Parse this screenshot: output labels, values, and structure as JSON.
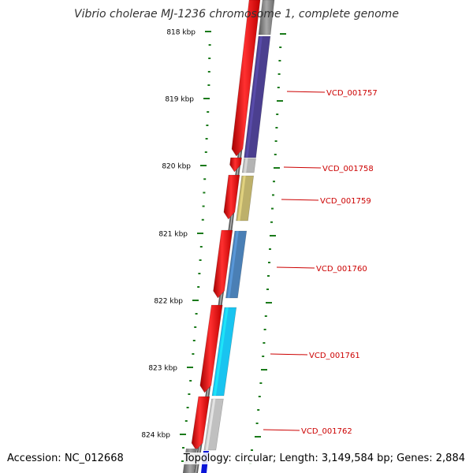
{
  "title": "Vibrio cholerae MJ-1236 chromosome 1, complete genome",
  "footer": {
    "accession": "Accession: NC_012668",
    "topology": "Topology: circular; Length: 3,149,584 bp; Genes: 2,884"
  },
  "colors": {
    "backbone": "#808080",
    "tick": "#1a7a1a",
    "strand_forward": "#ff0000",
    "label": "#cc0000",
    "leader": "#cc0000"
  },
  "ruler": {
    "unit": "kbp",
    "labels": [
      "818 kbp",
      "819 kbp",
      "820 kbp",
      "821 kbp",
      "822 kbp",
      "823 kbp",
      "824 kbp"
    ]
  },
  "genes": [
    {
      "label": "VCD_001757",
      "color": "#4b3f8f",
      "strand": "outer"
    },
    {
      "label": "VCD_001758",
      "color": "#b4b4b4",
      "strand": "outer"
    },
    {
      "label": "VCD_001759",
      "color": "#bdb06a",
      "strand": "outer"
    },
    {
      "label": "VCD_001760",
      "color": "#4a7fb5",
      "strand": "outer"
    },
    {
      "label": "VCD_001761",
      "color": "#19c4f0",
      "strand": "outer"
    },
    {
      "label": "VCD_001762",
      "color": "#c0c0c0",
      "strand": "outer"
    }
  ],
  "extra_features": [
    {
      "color": "#0a14d8",
      "strand": "inner"
    }
  ]
}
